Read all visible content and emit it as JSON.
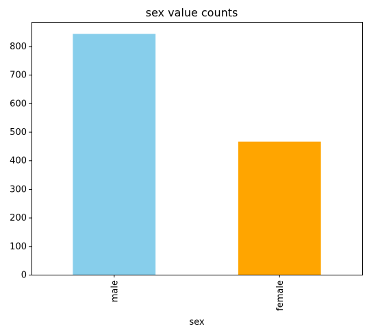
{
  "chart_data": {
    "type": "bar",
    "title": "sex value counts",
    "xlabel": "sex",
    "ylabel": "",
    "categories": [
      "male",
      "female"
    ],
    "values": [
      843,
      466
    ],
    "colors": [
      "#87ceeb",
      "#ffa500"
    ],
    "ylim": [
      0,
      885
    ],
    "yticks": [
      0,
      100,
      200,
      300,
      400,
      500,
      600,
      700,
      800
    ],
    "grid": false,
    "legend": "none"
  }
}
